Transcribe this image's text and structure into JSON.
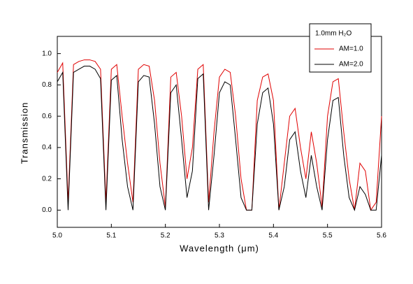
{
  "chart_data": {
    "type": "line",
    "x_label": "Wavelength (μm)",
    "y_label": "Transmission",
    "legend_title": "1.0mm H₂O",
    "legend_loc": "upper right",
    "x": [
      5.0,
      5.01,
      5.02,
      5.03,
      5.04,
      5.05,
      5.06,
      5.07,
      5.08,
      5.09,
      5.1,
      5.11,
      5.12,
      5.13,
      5.14,
      5.15,
      5.16,
      5.17,
      5.18,
      5.19,
      5.2,
      5.21,
      5.22,
      5.23,
      5.24,
      5.25,
      5.26,
      5.27,
      5.28,
      5.29,
      5.3,
      5.31,
      5.32,
      5.33,
      5.34,
      5.35,
      5.36,
      5.37,
      5.38,
      5.39,
      5.4,
      5.41,
      5.42,
      5.43,
      5.44,
      5.45,
      5.46,
      5.47,
      5.48,
      5.49,
      5.5,
      5.51,
      5.52,
      5.53,
      5.54,
      5.55,
      5.56,
      5.57,
      5.58,
      5.59,
      5.6
    ],
    "series": [
      {
        "name": "AM=1.0",
        "color": "#e00000",
        "values": [
          0.88,
          0.94,
          0.05,
          0.93,
          0.95,
          0.96,
          0.96,
          0.95,
          0.9,
          0.05,
          0.9,
          0.93,
          0.6,
          0.3,
          0.05,
          0.9,
          0.93,
          0.92,
          0.7,
          0.3,
          0.02,
          0.85,
          0.88,
          0.6,
          0.2,
          0.4,
          0.9,
          0.93,
          0.05,
          0.5,
          0.85,
          0.9,
          0.88,
          0.6,
          0.2,
          0.0,
          0.0,
          0.7,
          0.85,
          0.87,
          0.7,
          0.0,
          0.3,
          0.6,
          0.65,
          0.4,
          0.2,
          0.5,
          0.3,
          0.02,
          0.6,
          0.82,
          0.84,
          0.5,
          0.2,
          0.0,
          0.3,
          0.25,
          0.0,
          0.05,
          0.6
        ]
      },
      {
        "name": "AM=2.0",
        "color": "#000000",
        "values": [
          0.82,
          0.88,
          0.0,
          0.88,
          0.9,
          0.92,
          0.92,
          0.9,
          0.84,
          0.0,
          0.83,
          0.86,
          0.45,
          0.15,
          0.0,
          0.82,
          0.86,
          0.85,
          0.55,
          0.15,
          0.0,
          0.75,
          0.8,
          0.45,
          0.08,
          0.25,
          0.84,
          0.87,
          0.0,
          0.35,
          0.75,
          0.82,
          0.8,
          0.45,
          0.08,
          0.0,
          0.0,
          0.55,
          0.75,
          0.78,
          0.55,
          0.0,
          0.15,
          0.45,
          0.5,
          0.25,
          0.08,
          0.35,
          0.15,
          0.0,
          0.45,
          0.7,
          0.72,
          0.35,
          0.08,
          0.0,
          0.15,
          0.1,
          0.0,
          0.0,
          0.35
        ]
      }
    ],
    "xlim": [
      5.0,
      5.6
    ],
    "xticks": [
      {
        "value": 5,
        "label": "5.0"
      },
      5.1,
      5.2,
      5.3,
      5.4,
      5.5,
      5.6
    ],
    "ylim": [
      -0.11,
      1.11
    ],
    "yticks": [
      {
        "value": 0,
        "label": "0.0"
      },
      0.2,
      0.4,
      0.6,
      0.8,
      {
        "value": 1,
        "label": "1.0"
      }
    ]
  }
}
